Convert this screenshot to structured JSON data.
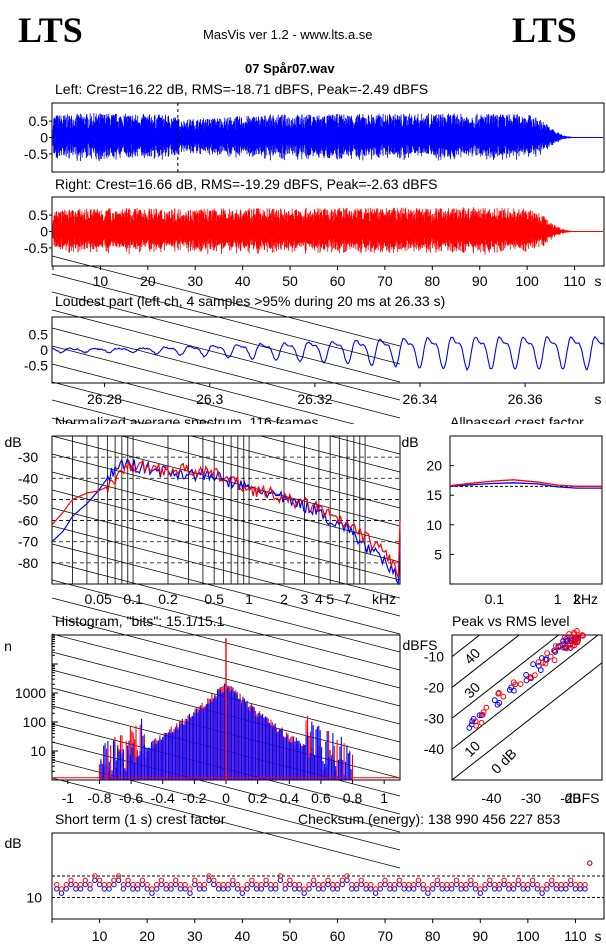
{
  "header": {
    "logo_left": "LTS",
    "logo_right": "LTS",
    "app_title": "MasVis ver 1.2 - www.lts.a.se",
    "file_name": "07 Spår07.wav"
  },
  "panels": {
    "left_stats": "Left: Crest=16.22 dB, RMS=-18.71 dBFS, Peak=-2.49 dBFS",
    "right_stats": "Right: Crest=16.66 dB, RMS=-19.29 dBFS, Peak=-2.63 dBFS",
    "loudest": "Loudest part (left  ch, 4 samples >95% during 20 ms at 26.33 s)",
    "spectrum": "Normalized average spectrum, 116 frames",
    "allpass": "Allpassed crest factor",
    "histogram": "Histogram, \"bits\": 15.1/15.1",
    "peak_rms": "Peak vs RMS level",
    "crest_st": "Short term (1 s) crest factor",
    "checksum": "Checksum (energy):   138 990 456 227 853"
  },
  "colors": {
    "left": "#0000ff",
    "right": "#ff0000",
    "grid": "#000000"
  },
  "chart_data": [
    {
      "type": "line",
      "name": "waveform-left",
      "yticks": [
        "0.5",
        "0",
        "-0.5"
      ],
      "ylim": [
        -1,
        1
      ],
      "xlim": [
        0,
        116
      ],
      "peak_abs": 0.75,
      "cursor_x": 26.33,
      "envelope": [
        [
          0,
          0.7
        ],
        [
          10,
          0.75
        ],
        [
          25,
          0.7
        ],
        [
          27,
          0.55
        ],
        [
          45,
          0.7
        ],
        [
          60,
          0.72
        ],
        [
          80,
          0.74
        ],
        [
          100,
          0.72
        ],
        [
          103,
          0.55
        ],
        [
          106,
          0.2
        ],
        [
          108,
          0.05
        ],
        [
          110,
          0.01
        ],
        [
          116,
          0
        ]
      ]
    },
    {
      "type": "line",
      "name": "waveform-right",
      "yticks": [
        "0.5",
        "0",
        "-0.5"
      ],
      "ylim": [
        -1,
        1
      ],
      "xlim": [
        0,
        116
      ],
      "peak_abs": 0.74,
      "envelope": [
        [
          0,
          0.65
        ],
        [
          10,
          0.72
        ],
        [
          30,
          0.7
        ],
        [
          50,
          0.72
        ],
        [
          70,
          0.73
        ],
        [
          90,
          0.74
        ],
        [
          100,
          0.7
        ],
        [
          103,
          0.55
        ],
        [
          106,
          0.2
        ],
        [
          108,
          0.05
        ],
        [
          110,
          0.01
        ],
        [
          116,
          0
        ]
      ],
      "xticks": [
        "10",
        "20",
        "30",
        "40",
        "50",
        "60",
        "70",
        "80",
        "90",
        "100",
        "110"
      ],
      "xunit": "s"
    },
    {
      "type": "line",
      "name": "loudest-part",
      "yticks": [
        "0.5",
        "0",
        "-0.5"
      ],
      "ylim": [
        -1,
        1
      ],
      "xlim": [
        26.27,
        26.375
      ],
      "xticks": [
        "26.28",
        "26.3",
        "26.32",
        "26.34",
        "26.36"
      ],
      "xunit": "s"
    },
    {
      "type": "line",
      "name": "spectrum",
      "ylabel": "dB",
      "yticks": [
        "-30",
        "-40",
        "-50",
        "-60",
        "-70",
        "-80"
      ],
      "ylim": [
        -90,
        -20
      ],
      "xticks": [
        "0.05",
        "0.1",
        "0.2",
        "0.5",
        "1",
        "2",
        "3",
        "4",
        "5",
        "7"
      ],
      "xunit": "kHz",
      "xlim_khz": [
        0.02,
        20
      ],
      "series": [
        {
          "color": "left",
          "x": [
            0.02,
            0.025,
            0.03,
            0.04,
            0.05,
            0.06,
            0.07,
            0.08,
            0.1,
            0.15,
            0.2,
            0.3,
            0.5,
            0.7,
            1,
            1.5,
            2,
            3,
            4,
            5,
            7,
            10,
            15,
            20
          ],
          "y": [
            -70,
            -65,
            -58,
            -52,
            -46,
            -40,
            -36,
            -33,
            -34,
            -36,
            -37,
            -38,
            -39,
            -42,
            -45,
            -47,
            -50,
            -53,
            -55,
            -60,
            -63,
            -72,
            -80,
            -88
          ]
        },
        {
          "color": "right",
          "x": [
            0.02,
            0.025,
            0.03,
            0.04,
            0.05,
            0.06,
            0.07,
            0.08,
            0.1,
            0.15,
            0.2,
            0.3,
            0.5,
            0.7,
            1,
            1.5,
            2,
            3,
            4,
            5,
            7,
            10,
            15,
            20
          ],
          "y": [
            -62,
            -56,
            -50,
            -47,
            -46,
            -44,
            -40,
            -36,
            -34,
            -35,
            -36,
            -36,
            -38,
            -41,
            -45,
            -47,
            -50,
            -52,
            -54,
            -58,
            -62,
            -68,
            -75,
            -86
          ]
        }
      ]
    },
    {
      "type": "line",
      "name": "allpassed-crest",
      "ylabel": "dB",
      "yticks": [
        "20",
        "15",
        "10",
        "5"
      ],
      "ylim": [
        0,
        25
      ],
      "xticks": [
        "0.1",
        "1",
        "2"
      ],
      "xunit": "kHz",
      "xlim_khz": [
        0.02,
        5
      ],
      "series": [
        {
          "color": "left",
          "x": [
            0.02,
            0.05,
            0.1,
            0.2,
            0.5,
            1,
            2,
            5
          ],
          "y": [
            16.5,
            16.8,
            17,
            17.1,
            16.9,
            16.4,
            16.2,
            16.2
          ]
        },
        {
          "color": "right",
          "x": [
            0.02,
            0.05,
            0.1,
            0.2,
            0.5,
            1,
            2,
            5
          ],
          "y": [
            16.6,
            17.1,
            17.4,
            17.6,
            17.2,
            16.7,
            16.5,
            16.5
          ]
        }
      ]
    },
    {
      "type": "line",
      "name": "histogram",
      "ylabel": "n",
      "yticks": [
        "1000",
        "100",
        "10"
      ],
      "ylog": true,
      "ylim": [
        1,
        100000
      ],
      "xticks": [
        "-1",
        "-0.8",
        "-0.6",
        "-0.4",
        "-0.2",
        "0",
        "0.2",
        "0.4",
        "0.6",
        "0.8",
        "1"
      ],
      "xlim": [
        -1.1,
        1.1
      ],
      "series": [
        {
          "color": "right",
          "x": [
            -0.78,
            -0.7,
            -0.6,
            -0.5,
            -0.4,
            -0.3,
            -0.2,
            -0.1,
            -0.05,
            0,
            0.05,
            0.1,
            0.2,
            0.3,
            0.4,
            0.5,
            0.6,
            0.7,
            0.78
          ],
          "y": [
            1,
            2,
            5,
            12,
            30,
            80,
            200,
            600,
            1100,
            1800,
            1100,
            600,
            200,
            80,
            30,
            12,
            5,
            2,
            1
          ]
        },
        {
          "color": "left",
          "x": [
            -0.78,
            -0.7,
            -0.6,
            -0.5,
            -0.4,
            -0.3,
            -0.2,
            -0.1,
            -0.05,
            0,
            0.05,
            0.1,
            0.2,
            0.3,
            0.4,
            0.5,
            0.6,
            0.7,
            0.78
          ],
          "y": [
            1,
            3,
            6,
            14,
            28,
            75,
            190,
            580,
            1050,
            1700,
            1050,
            580,
            190,
            75,
            28,
            14,
            6,
            3,
            1
          ]
        }
      ]
    },
    {
      "type": "scatter",
      "name": "peak-vs-rms",
      "ylabel": "dBFS",
      "yticks": [
        "-10",
        "-20",
        "-30",
        "-40"
      ],
      "ylim": [
        -50,
        -3
      ],
      "xticks": [
        "-40",
        "-30",
        "-20"
      ],
      "xunit": "dBFS",
      "xlim": [
        -50,
        -12
      ],
      "diag_labels": [
        "40",
        "30",
        "10",
        "0 dB"
      ],
      "series": [
        {
          "color": "left",
          "x": [
            -45,
            -43,
            -38,
            -35,
            -30,
            -28,
            -26,
            -24,
            -22,
            -21,
            -20,
            -19,
            -18,
            -20,
            -21
          ],
          "y": [
            -32,
            -29,
            -25,
            -20,
            -17,
            -13,
            -11,
            -8,
            -6,
            -5,
            -5,
            -4,
            -4,
            -6,
            -7
          ]
        },
        {
          "color": "right",
          "x": [
            -44,
            -42,
            -37,
            -34,
            -29,
            -27,
            -25,
            -23,
            -22,
            -20,
            -19,
            -18,
            -17,
            -19,
            -20
          ],
          "y": [
            -31,
            -28,
            -23,
            -19,
            -16,
            -12,
            -10,
            -7,
            -6,
            -5,
            -4,
            -3,
            -3,
            -5,
            -6
          ]
        }
      ]
    },
    {
      "type": "scatter",
      "name": "short-term-crest",
      "ylabel": "dB",
      "yticks": [
        "10"
      ],
      "ylim": [
        5,
        25
      ],
      "xlim": [
        0,
        116
      ],
      "xticks": [
        "10",
        "20",
        "30",
        "40",
        "50",
        "60",
        "70",
        "80",
        "90",
        "100",
        "110"
      ],
      "xunit": "s",
      "ref_lines": [
        10,
        15
      ],
      "series": [
        {
          "color": "left",
          "values": [
            12,
            11,
            12,
            13,
            12,
            12,
            13,
            12,
            14,
            13,
            12,
            12,
            13,
            14,
            12,
            13,
            12,
            12,
            13,
            12,
            11,
            12,
            13,
            12,
            12,
            13,
            12,
            12,
            11,
            13,
            12,
            12,
            14,
            13,
            12,
            12,
            12,
            13,
            12,
            11,
            12,
            13,
            12,
            12,
            13,
            12,
            12,
            14,
            12,
            13,
            12,
            12,
            11,
            12,
            13,
            12,
            12,
            13,
            12,
            12,
            13,
            14,
            12,
            12,
            13,
            12,
            12,
            11,
            12,
            13,
            12,
            12,
            13,
            12,
            12,
            12,
            13,
            12,
            11,
            12,
            13,
            12,
            12,
            12,
            13,
            12,
            12,
            13,
            12,
            11,
            12,
            13,
            12,
            12,
            13,
            12,
            12,
            13,
            12,
            12,
            13,
            12,
            11,
            12,
            13,
            12,
            12,
            12,
            13,
            12,
            12,
            12,
            18
          ]
        },
        {
          "color": "right",
          "values": [
            13,
            12,
            13,
            14,
            13,
            13,
            14,
            13,
            15,
            14,
            13,
            13,
            14,
            15,
            13,
            14,
            13,
            13,
            14,
            13,
            12,
            13,
            14,
            13,
            13,
            14,
            13,
            13,
            12,
            14,
            13,
            13,
            15,
            14,
            13,
            13,
            13,
            14,
            13,
            12,
            13,
            14,
            13,
            13,
            14,
            13,
            13,
            15,
            13,
            14,
            13,
            13,
            12,
            13,
            14,
            13,
            13,
            14,
            13,
            13,
            14,
            15,
            13,
            13,
            14,
            13,
            13,
            12,
            13,
            14,
            13,
            13,
            14,
            13,
            13,
            13,
            14,
            13,
            12,
            13,
            14,
            13,
            13,
            13,
            14,
            13,
            13,
            14,
            13,
            12,
            13,
            14,
            13,
            13,
            14,
            13,
            13,
            14,
            13,
            13,
            14,
            13,
            12,
            13,
            14,
            13,
            13,
            13,
            14,
            13,
            13,
            13,
            18
          ]
        }
      ]
    }
  ]
}
